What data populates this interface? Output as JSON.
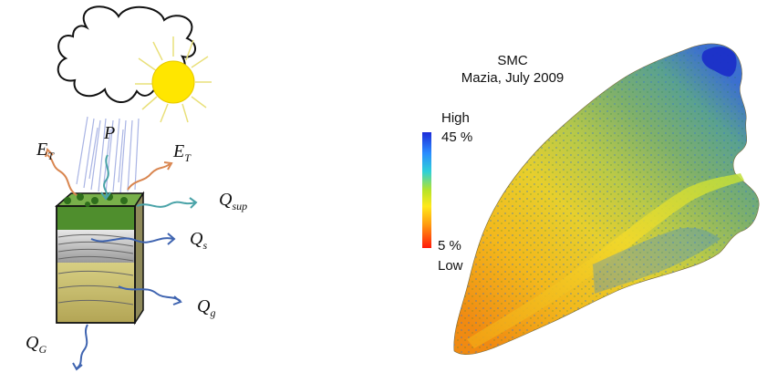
{
  "diagram": {
    "labels": {
      "et_left": {
        "main": "E",
        "sub": "T"
      },
      "precip": {
        "main": "P",
        "sub": ""
      },
      "et_right": {
        "main": "E",
        "sub": "T"
      },
      "q_sup": {
        "main": "Q",
        "sub": "sup"
      },
      "q_s": {
        "main": "Q",
        "sub": "s"
      },
      "q_g": {
        "main": "Q",
        "sub": "g"
      },
      "q_G": {
        "main": "Q",
        "sub": "G"
      }
    }
  },
  "map": {
    "title_line1": "SMC",
    "title_line2": "Mazia, July 2009",
    "legend": {
      "top_word": "High",
      "top_value": "45 %",
      "bottom_value": "5 %",
      "bottom_word": "Low",
      "colors": [
        "#1d2bd8",
        "#2a8cff",
        "#2fd0d8",
        "#b6e32a",
        "#ffe81a",
        "#ff9a10",
        "#ff1a0a"
      ]
    }
  }
}
